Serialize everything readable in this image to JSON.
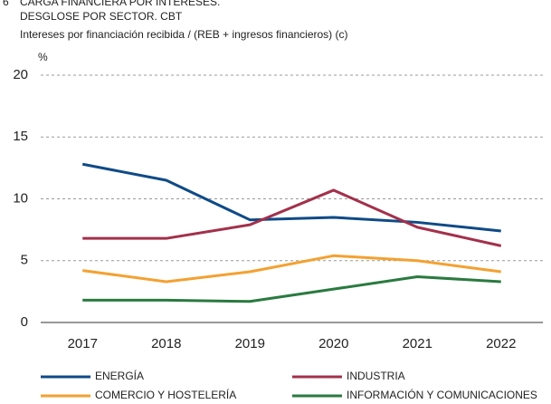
{
  "chart_data": {
    "type": "line",
    "figure_number": "6",
    "title": [
      "CARGA FINANCIERA POR INTERESES.",
      "DESGLOSE POR SECTOR. CBT"
    ],
    "subtitle": "Intereses por financiación recibida / (REB + ingresos financieros) (c)",
    "y_label": "%",
    "categories": [
      "2017",
      "2018",
      "2019",
      "2020",
      "2021",
      "2022"
    ],
    "series": [
      {
        "name": "ENERGÍA",
        "color": "#0f4a87",
        "values": [
          12.8,
          11.5,
          8.3,
          8.5,
          8.1,
          7.4
        ]
      },
      {
        "name": "INDUSTRIA",
        "color": "#a3304b",
        "values": [
          6.8,
          6.8,
          7.9,
          10.7,
          7.7,
          6.2
        ]
      },
      {
        "name": "COMERCIO Y HOSTELERÍA",
        "color": "#f4a131",
        "values": [
          4.2,
          3.3,
          4.1,
          5.4,
          5.0,
          4.1
        ]
      },
      {
        "name": "INFORMACIÓN Y COMUNICACIONES",
        "color": "#2a7a3f",
        "values": [
          1.8,
          1.8,
          1.7,
          2.7,
          3.7,
          3.3
        ]
      }
    ],
    "ylim": [
      0,
      20
    ],
    "yticks": [
      0,
      5,
      10,
      15,
      20
    ],
    "grid": true
  }
}
